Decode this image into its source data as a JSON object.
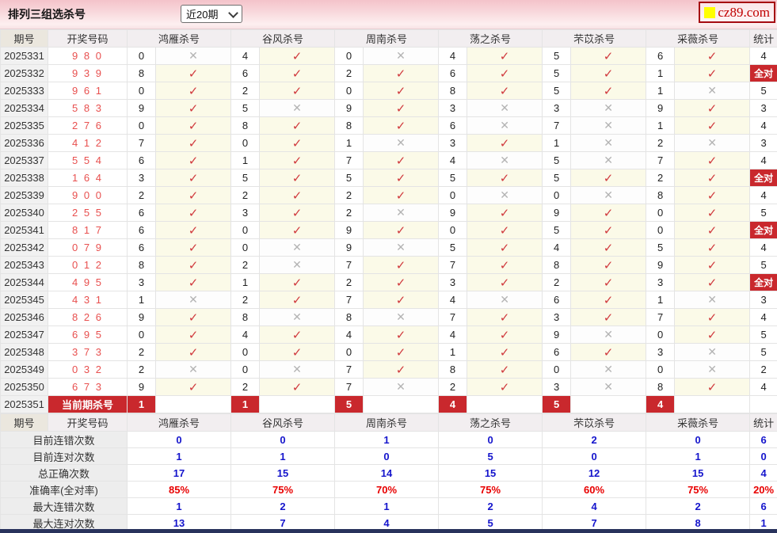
{
  "title_bar": {
    "title": "排列三组选杀号",
    "range_select": {
      "value": "近20期"
    },
    "logo": {
      "text": "cz89.com"
    }
  },
  "table": {
    "headers": {
      "period": "期号",
      "numbers": "开奖号码",
      "experts": [
        "鸿雁杀号",
        "谷风杀号",
        "周南杀号",
        "荡之杀号",
        "芣苡杀号",
        "采薇杀号"
      ],
      "stat": "统计"
    },
    "marks": {
      "hit_glyph": "✓",
      "miss_glyph": "✕"
    },
    "all_correct_label": "全对",
    "rows": [
      {
        "period": "2025331",
        "numbers": "9 8 0",
        "cells": [
          {
            "n": "0",
            "hit": false
          },
          {
            "n": "4",
            "hit": true
          },
          {
            "n": "0",
            "hit": false
          },
          {
            "n": "4",
            "hit": true
          },
          {
            "n": "5",
            "hit": true
          },
          {
            "n": "6",
            "hit": true
          }
        ],
        "stat": "4"
      },
      {
        "period": "2025332",
        "numbers": "9 3 9",
        "cells": [
          {
            "n": "8",
            "hit": true
          },
          {
            "n": "6",
            "hit": true
          },
          {
            "n": "2",
            "hit": true
          },
          {
            "n": "6",
            "hit": true
          },
          {
            "n": "5",
            "hit": true
          },
          {
            "n": "1",
            "hit": true
          }
        ],
        "stat": "全对"
      },
      {
        "period": "2025333",
        "numbers": "9 6 1",
        "cells": [
          {
            "n": "0",
            "hit": true
          },
          {
            "n": "2",
            "hit": true
          },
          {
            "n": "0",
            "hit": true
          },
          {
            "n": "8",
            "hit": true
          },
          {
            "n": "5",
            "hit": true
          },
          {
            "n": "1",
            "hit": false
          }
        ],
        "stat": "5"
      },
      {
        "period": "2025334",
        "numbers": "5 8 3",
        "cells": [
          {
            "n": "9",
            "hit": true
          },
          {
            "n": "5",
            "hit": false
          },
          {
            "n": "9",
            "hit": true
          },
          {
            "n": "3",
            "hit": false
          },
          {
            "n": "3",
            "hit": false
          },
          {
            "n": "9",
            "hit": true
          }
        ],
        "stat": "3"
      },
      {
        "period": "2025335",
        "numbers": "2 7 6",
        "cells": [
          {
            "n": "0",
            "hit": true
          },
          {
            "n": "8",
            "hit": true
          },
          {
            "n": "8",
            "hit": true
          },
          {
            "n": "6",
            "hit": false
          },
          {
            "n": "7",
            "hit": false
          },
          {
            "n": "1",
            "hit": true
          }
        ],
        "stat": "4"
      },
      {
        "period": "2025336",
        "numbers": "4 1 2",
        "cells": [
          {
            "n": "7",
            "hit": true
          },
          {
            "n": "0",
            "hit": true
          },
          {
            "n": "1",
            "hit": false
          },
          {
            "n": "3",
            "hit": true
          },
          {
            "n": "1",
            "hit": false
          },
          {
            "n": "2",
            "hit": false
          }
        ],
        "stat": "3"
      },
      {
        "period": "2025337",
        "numbers": "5 5 4",
        "cells": [
          {
            "n": "6",
            "hit": true
          },
          {
            "n": "1",
            "hit": true
          },
          {
            "n": "7",
            "hit": true
          },
          {
            "n": "4",
            "hit": false
          },
          {
            "n": "5",
            "hit": false
          },
          {
            "n": "7",
            "hit": true
          }
        ],
        "stat": "4"
      },
      {
        "period": "2025338",
        "numbers": "1 6 4",
        "cells": [
          {
            "n": "3",
            "hit": true
          },
          {
            "n": "5",
            "hit": true
          },
          {
            "n": "5",
            "hit": true
          },
          {
            "n": "5",
            "hit": true
          },
          {
            "n": "5",
            "hit": true
          },
          {
            "n": "2",
            "hit": true
          }
        ],
        "stat": "全对"
      },
      {
        "period": "2025339",
        "numbers": "9 0 0",
        "cells": [
          {
            "n": "2",
            "hit": true
          },
          {
            "n": "2",
            "hit": true
          },
          {
            "n": "2",
            "hit": true
          },
          {
            "n": "0",
            "hit": false
          },
          {
            "n": "0",
            "hit": false
          },
          {
            "n": "8",
            "hit": true
          }
        ],
        "stat": "4"
      },
      {
        "period": "2025340",
        "numbers": "2 5 5",
        "cells": [
          {
            "n": "6",
            "hit": true
          },
          {
            "n": "3",
            "hit": true
          },
          {
            "n": "2",
            "hit": false
          },
          {
            "n": "9",
            "hit": true
          },
          {
            "n": "9",
            "hit": true
          },
          {
            "n": "0",
            "hit": true
          }
        ],
        "stat": "5"
      },
      {
        "period": "2025341",
        "numbers": "8 1 7",
        "cells": [
          {
            "n": "6",
            "hit": true
          },
          {
            "n": "0",
            "hit": true
          },
          {
            "n": "9",
            "hit": true
          },
          {
            "n": "0",
            "hit": true
          },
          {
            "n": "5",
            "hit": true
          },
          {
            "n": "0",
            "hit": true
          }
        ],
        "stat": "全对"
      },
      {
        "period": "2025342",
        "numbers": "0 7 9",
        "cells": [
          {
            "n": "6",
            "hit": true
          },
          {
            "n": "0",
            "hit": false
          },
          {
            "n": "9",
            "hit": false
          },
          {
            "n": "5",
            "hit": true
          },
          {
            "n": "4",
            "hit": true
          },
          {
            "n": "5",
            "hit": true
          }
        ],
        "stat": "4"
      },
      {
        "period": "2025343",
        "numbers": "0 1 2",
        "cells": [
          {
            "n": "8",
            "hit": true
          },
          {
            "n": "2",
            "hit": false
          },
          {
            "n": "7",
            "hit": true
          },
          {
            "n": "7",
            "hit": true
          },
          {
            "n": "8",
            "hit": true
          },
          {
            "n": "9",
            "hit": true
          }
        ],
        "stat": "5"
      },
      {
        "period": "2025344",
        "numbers": "4 9 5",
        "cells": [
          {
            "n": "3",
            "hit": true
          },
          {
            "n": "1",
            "hit": true
          },
          {
            "n": "2",
            "hit": true
          },
          {
            "n": "3",
            "hit": true
          },
          {
            "n": "2",
            "hit": true
          },
          {
            "n": "3",
            "hit": true
          }
        ],
        "stat": "全对"
      },
      {
        "period": "2025345",
        "numbers": "4 3 1",
        "cells": [
          {
            "n": "1",
            "hit": false
          },
          {
            "n": "2",
            "hit": true
          },
          {
            "n": "7",
            "hit": true
          },
          {
            "n": "4",
            "hit": false
          },
          {
            "n": "6",
            "hit": true
          },
          {
            "n": "1",
            "hit": false
          }
        ],
        "stat": "3"
      },
      {
        "period": "2025346",
        "numbers": "8 2 6",
        "cells": [
          {
            "n": "9",
            "hit": true
          },
          {
            "n": "8",
            "hit": false
          },
          {
            "n": "8",
            "hit": false
          },
          {
            "n": "7",
            "hit": true
          },
          {
            "n": "3",
            "hit": true
          },
          {
            "n": "7",
            "hit": true
          }
        ],
        "stat": "4"
      },
      {
        "period": "2025347",
        "numbers": "6 9 5",
        "cells": [
          {
            "n": "0",
            "hit": true
          },
          {
            "n": "4",
            "hit": true
          },
          {
            "n": "4",
            "hit": true
          },
          {
            "n": "4",
            "hit": true
          },
          {
            "n": "9",
            "hit": false
          },
          {
            "n": "0",
            "hit": true
          }
        ],
        "stat": "5"
      },
      {
        "period": "2025348",
        "numbers": "3 7 3",
        "cells": [
          {
            "n": "2",
            "hit": true
          },
          {
            "n": "0",
            "hit": true
          },
          {
            "n": "0",
            "hit": true
          },
          {
            "n": "1",
            "hit": true
          },
          {
            "n": "6",
            "hit": true
          },
          {
            "n": "3",
            "hit": false
          }
        ],
        "stat": "5"
      },
      {
        "period": "2025349",
        "numbers": "0 3 2",
        "cells": [
          {
            "n": "2",
            "hit": false
          },
          {
            "n": "0",
            "hit": false
          },
          {
            "n": "7",
            "hit": true
          },
          {
            "n": "8",
            "hit": true
          },
          {
            "n": "0",
            "hit": false
          },
          {
            "n": "0",
            "hit": false
          }
        ],
        "stat": "2"
      },
      {
        "period": "2025350",
        "numbers": "6 7 3",
        "cells": [
          {
            "n": "9",
            "hit": true
          },
          {
            "n": "2",
            "hit": true
          },
          {
            "n": "7",
            "hit": false
          },
          {
            "n": "2",
            "hit": true
          },
          {
            "n": "3",
            "hit": false
          },
          {
            "n": "8",
            "hit": true
          }
        ],
        "stat": "4"
      }
    ],
    "current_row": {
      "period": "2025351",
      "label": "当前期杀号",
      "kills": [
        "1",
        "1",
        "5",
        "4",
        "5",
        "4"
      ]
    }
  },
  "summary": {
    "rows": [
      {
        "label": "目前连错次数",
        "values": [
          "0",
          "0",
          "1",
          "0",
          "2",
          "0"
        ],
        "stat": "6",
        "color": "blue"
      },
      {
        "label": "目前连对次数",
        "values": [
          "1",
          "1",
          "0",
          "5",
          "0",
          "1"
        ],
        "stat": "0",
        "color": "blue"
      },
      {
        "label": "总正确次数",
        "values": [
          "17",
          "15",
          "14",
          "15",
          "12",
          "15"
        ],
        "stat": "4",
        "color": "blue"
      },
      {
        "label": "准确率(全对率)",
        "values": [
          "85%",
          "75%",
          "70%",
          "75%",
          "60%",
          "75%"
        ],
        "stat": "20%",
        "color": "red"
      },
      {
        "label": "最大连错次数",
        "values": [
          "1",
          "2",
          "1",
          "2",
          "4",
          "2"
        ],
        "stat": "6",
        "color": "blue"
      },
      {
        "label": "最大连对次数",
        "values": [
          "13",
          "7",
          "4",
          "5",
          "7",
          "8"
        ],
        "stat": "1",
        "color": "blue"
      }
    ]
  },
  "colors": {
    "badge_red": "#c9282d",
    "check_red": "#d0393d",
    "cross_gray": "#b3b3b3",
    "blue_value": "#1515cc",
    "red_value": "#e80000",
    "draw_number_red": "#e8504f",
    "topbar_pink": "#f4c3ca",
    "footer_navy": "#28325c",
    "logo_yellow": "#ffff00",
    "logo_red": "#c00000"
  }
}
